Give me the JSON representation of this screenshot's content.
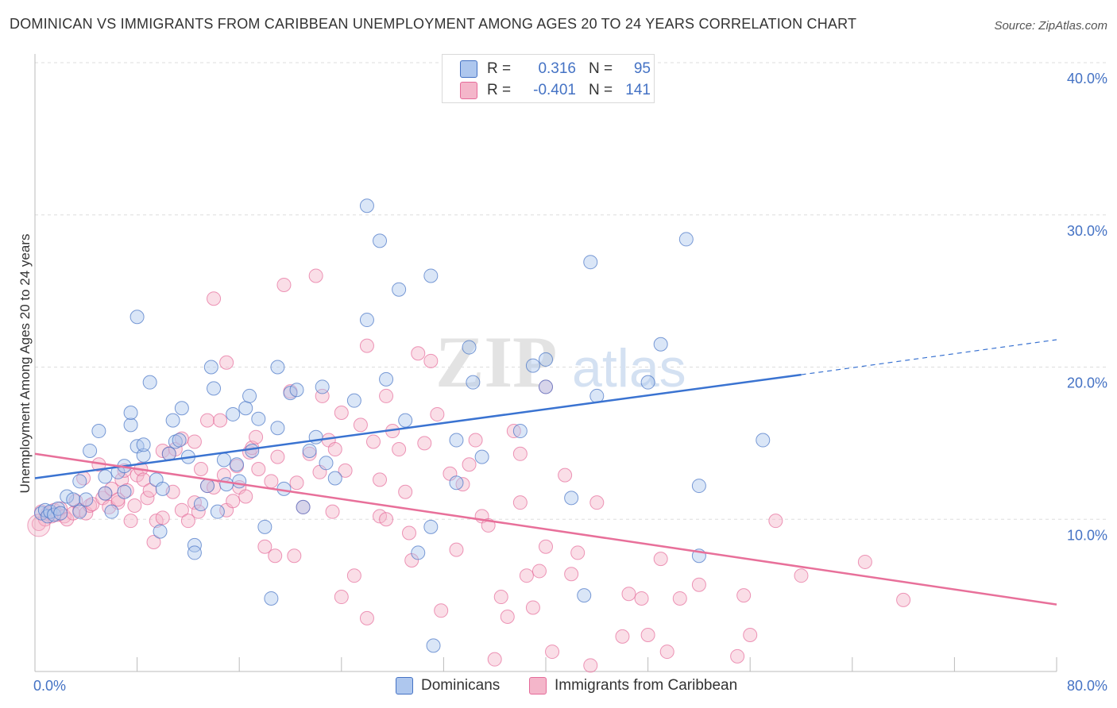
{
  "title": "DOMINICAN VS IMMIGRANTS FROM CARIBBEAN UNEMPLOYMENT AMONG AGES 20 TO 24 YEARS CORRELATION CHART",
  "source": "Source: ZipAtlas.com",
  "watermark": {
    "zip": "ZIP",
    "atlas": "atlas"
  },
  "colors": {
    "blue": "#4472c4",
    "blue_fill": "#aec7ee",
    "blue_line": "#3a73d1",
    "pink": "#e56b9a",
    "pink_fill": "#f4b6ca",
    "pink_line": "#e8709a",
    "grid": "#dddddd",
    "axis": "#bbbbbb"
  },
  "stats_legend": [
    {
      "r_label": "R =",
      "r_value": "0.316",
      "n_label": "N =",
      "n_value": "95",
      "color": "#aec7ee"
    },
    {
      "r_label": "R =",
      "r_value": "-0.401",
      "n_label": "N =",
      "n_value": "141",
      "color": "#f4b6ca"
    }
  ],
  "series_legend": [
    {
      "name": "Dominicans",
      "color": "#aec7ee"
    },
    {
      "name": "Immigrants from Caribbean",
      "color": "#f4b6ca"
    }
  ],
  "chart_data": {
    "type": "scatter",
    "title": "DOMINICAN VS IMMIGRANTS FROM CARIBBEAN UNEMPLOYMENT AMONG AGES 20 TO 24 YEARS CORRELATION CHART",
    "xlabel": "",
    "ylabel": "Unemployment Among Ages 20 to 24 years",
    "xlim": [
      0,
      80
    ],
    "ylim": [
      0,
      40
    ],
    "x_ticks": [
      0,
      80
    ],
    "x_tick_labels": [
      "0.0%",
      "80.0%"
    ],
    "y_ticks": [
      10,
      20,
      30,
      40
    ],
    "y_tick_labels": [
      "10.0%",
      "20.0%",
      "30.0%",
      "40.0%"
    ],
    "grid": true,
    "legend_position": "top-center",
    "series": [
      {
        "name": "Dominicans",
        "r": 0.316,
        "n": 95,
        "trend": {
          "x0": 0,
          "y0": 12.7,
          "x1": 60,
          "y1": 19.5,
          "dashed_to_x": 80,
          "dashed_to_y": 21.8
        },
        "points": [
          [
            0.5,
            10.4
          ],
          [
            0.8,
            10.6
          ],
          [
            1.0,
            10.2
          ],
          [
            1.2,
            10.5
          ],
          [
            1.5,
            10.3
          ],
          [
            1.8,
            10.7
          ],
          [
            2.0,
            10.4
          ],
          [
            2.5,
            11.5
          ],
          [
            3.0,
            11.3
          ],
          [
            3.5,
            10.5
          ],
          [
            3.5,
            12.5
          ],
          [
            4.0,
            11.3
          ],
          [
            4.3,
            14.5
          ],
          [
            5.0,
            15.8
          ],
          [
            5.5,
            12.8
          ],
          [
            5.5,
            11.7
          ],
          [
            6.0,
            10.5
          ],
          [
            6.5,
            13.1
          ],
          [
            7.0,
            11.8
          ],
          [
            7.0,
            13.5
          ],
          [
            7.5,
            16.2
          ],
          [
            7.5,
            17.0
          ],
          [
            8.0,
            14.8
          ],
          [
            8.0,
            23.3
          ],
          [
            8.5,
            14.2
          ],
          [
            8.5,
            14.9
          ],
          [
            9.0,
            19.0
          ],
          [
            9.5,
            12.6
          ],
          [
            9.8,
            9.2
          ],
          [
            10.0,
            12.0
          ],
          [
            10.5,
            14.3
          ],
          [
            10.8,
            16.5
          ],
          [
            11.0,
            15.1
          ],
          [
            11.3,
            15.2
          ],
          [
            11.5,
            17.3
          ],
          [
            12.0,
            14.1
          ],
          [
            12.5,
            8.3
          ],
          [
            12.5,
            7.8
          ],
          [
            13.0,
            11.0
          ],
          [
            13.5,
            12.2
          ],
          [
            13.8,
            20.0
          ],
          [
            14.0,
            18.6
          ],
          [
            14.3,
            10.5
          ],
          [
            14.8,
            13.9
          ],
          [
            15.0,
            12.3
          ],
          [
            15.5,
            16.9
          ],
          [
            15.8,
            13.6
          ],
          [
            16.0,
            12.5
          ],
          [
            16.5,
            17.3
          ],
          [
            16.8,
            18.1
          ],
          [
            17.0,
            14.5
          ],
          [
            17.5,
            16.6
          ],
          [
            18.0,
            9.5
          ],
          [
            18.5,
            4.8
          ],
          [
            19.0,
            16.0
          ],
          [
            19.0,
            20.0
          ],
          [
            19.5,
            12.0
          ],
          [
            20.0,
            18.3
          ],
          [
            20.5,
            18.5
          ],
          [
            21.0,
            10.8
          ],
          [
            21.5,
            14.5
          ],
          [
            22.0,
            15.4
          ],
          [
            22.5,
            18.7
          ],
          [
            22.8,
            13.7
          ],
          [
            23.5,
            12.7
          ],
          [
            25.0,
            17.8
          ],
          [
            26.0,
            30.6
          ],
          [
            26.0,
            23.1
          ],
          [
            27.0,
            28.3
          ],
          [
            27.5,
            19.2
          ],
          [
            28.5,
            25.1
          ],
          [
            29.0,
            16.5
          ],
          [
            30.0,
            7.8
          ],
          [
            31.0,
            26.0
          ],
          [
            31.0,
            9.5
          ],
          [
            31.2,
            1.7
          ],
          [
            33.0,
            15.2
          ],
          [
            33.0,
            12.4
          ],
          [
            34.0,
            21.3
          ],
          [
            34.3,
            19.0
          ],
          [
            35.0,
            14.1
          ],
          [
            38.0,
            15.8
          ],
          [
            39.0,
            20.1
          ],
          [
            40.0,
            18.7
          ],
          [
            40.0,
            20.5
          ],
          [
            42.0,
            11.4
          ],
          [
            43.0,
            5.0
          ],
          [
            43.5,
            26.9
          ],
          [
            44.0,
            18.1
          ],
          [
            48.0,
            19.0
          ],
          [
            49.0,
            21.5
          ],
          [
            51.0,
            28.4
          ],
          [
            52.0,
            7.6
          ],
          [
            52.0,
            12.2
          ],
          [
            57.0,
            15.2
          ]
        ]
      },
      {
        "name": "Immigrants from Caribbean",
        "r": -0.401,
        "n": 141,
        "trend": {
          "x0": 0,
          "y0": 14.3,
          "x1": 80,
          "y1": 4.4
        },
        "points": [
          [
            0.3,
            9.7
          ],
          [
            0.5,
            10.5
          ],
          [
            0.8,
            10.0
          ],
          [
            1.0,
            10.4
          ],
          [
            1.3,
            10.2
          ],
          [
            1.5,
            10.6
          ],
          [
            1.8,
            10.3
          ],
          [
            2.0,
            10.7
          ],
          [
            2.3,
            10.2
          ],
          [
            2.5,
            10.0
          ],
          [
            3.0,
            10.4
          ],
          [
            3.2,
            11.2
          ],
          [
            3.5,
            10.6
          ],
          [
            3.8,
            12.7
          ],
          [
            4.0,
            10.4
          ],
          [
            4.3,
            10.9
          ],
          [
            4.5,
            11.0
          ],
          [
            5.0,
            13.6
          ],
          [
            5.3,
            11.4
          ],
          [
            5.5,
            11.7
          ],
          [
            5.8,
            10.8
          ],
          [
            6.0,
            12.0
          ],
          [
            6.5,
            11.1
          ],
          [
            6.5,
            11.3
          ],
          [
            6.8,
            12.6
          ],
          [
            7.0,
            13.2
          ],
          [
            7.2,
            11.9
          ],
          [
            7.5,
            9.9
          ],
          [
            7.8,
            10.9
          ],
          [
            8.0,
            12.9
          ],
          [
            8.3,
            13.3
          ],
          [
            8.5,
            12.6
          ],
          [
            8.8,
            11.4
          ],
          [
            9.0,
            11.9
          ],
          [
            9.3,
            8.5
          ],
          [
            9.5,
            9.9
          ],
          [
            10.0,
            10.1
          ],
          [
            10.0,
            14.5
          ],
          [
            10.5,
            14.3
          ],
          [
            10.8,
            11.8
          ],
          [
            11.0,
            14.6
          ],
          [
            11.5,
            15.3
          ],
          [
            11.5,
            10.6
          ],
          [
            12.0,
            9.9
          ],
          [
            12.5,
            15.1
          ],
          [
            12.5,
            11.1
          ],
          [
            12.8,
            10.5
          ],
          [
            13.0,
            13.3
          ],
          [
            13.5,
            16.5
          ],
          [
            13.5,
            12.2
          ],
          [
            14.0,
            12.1
          ],
          [
            14.0,
            24.5
          ],
          [
            14.5,
            16.5
          ],
          [
            14.8,
            12.9
          ],
          [
            15.0,
            20.3
          ],
          [
            15.0,
            10.6
          ],
          [
            15.5,
            11.2
          ],
          [
            15.8,
            13.5
          ],
          [
            16.0,
            12.1
          ],
          [
            16.5,
            11.5
          ],
          [
            16.8,
            14.4
          ],
          [
            17.0,
            14.7
          ],
          [
            17.3,
            15.4
          ],
          [
            17.5,
            13.3
          ],
          [
            18.0,
            8.2
          ],
          [
            18.5,
            12.5
          ],
          [
            18.8,
            7.6
          ],
          [
            19.0,
            14.1
          ],
          [
            19.5,
            25.4
          ],
          [
            20.0,
            18.4
          ],
          [
            20.3,
            7.6
          ],
          [
            20.5,
            12.4
          ],
          [
            21.0,
            10.8
          ],
          [
            21.5,
            14.3
          ],
          [
            22.0,
            26.0
          ],
          [
            22.3,
            13.1
          ],
          [
            22.5,
            18.1
          ],
          [
            23.0,
            15.2
          ],
          [
            23.3,
            10.5
          ],
          [
            23.5,
            14.6
          ],
          [
            24.0,
            17.0
          ],
          [
            24.0,
            4.9
          ],
          [
            24.3,
            13.2
          ],
          [
            25.0,
            6.3
          ],
          [
            25.5,
            16.2
          ],
          [
            26.0,
            21.4
          ],
          [
            26.0,
            3.5
          ],
          [
            26.5,
            15.1
          ],
          [
            27.0,
            10.2
          ],
          [
            27.0,
            12.6
          ],
          [
            27.5,
            18.1
          ],
          [
            27.5,
            10.0
          ],
          [
            28.0,
            15.8
          ],
          [
            28.5,
            14.6
          ],
          [
            29.0,
            11.8
          ],
          [
            29.3,
            9.1
          ],
          [
            29.5,
            7.3
          ],
          [
            30.0,
            20.9
          ],
          [
            30.5,
            15.0
          ],
          [
            31.0,
            20.4
          ],
          [
            31.5,
            16.9
          ],
          [
            31.8,
            4.0
          ],
          [
            32.5,
            13.0
          ],
          [
            33.0,
            8.0
          ],
          [
            33.5,
            12.3
          ],
          [
            34.0,
            13.6
          ],
          [
            34.5,
            15.2
          ],
          [
            35.0,
            10.2
          ],
          [
            35.5,
            9.6
          ],
          [
            36.0,
            0.8
          ],
          [
            36.5,
            4.9
          ],
          [
            37.0,
            3.6
          ],
          [
            37.5,
            15.8
          ],
          [
            38.0,
            11.1
          ],
          [
            38.0,
            14.3
          ],
          [
            38.5,
            6.3
          ],
          [
            39.0,
            4.2
          ],
          [
            39.5,
            6.6
          ],
          [
            40.0,
            18.7
          ],
          [
            40.0,
            8.2
          ],
          [
            40.5,
            1.3
          ],
          [
            41.5,
            12.9
          ],
          [
            42.0,
            6.4
          ],
          [
            42.5,
            7.8
          ],
          [
            43.5,
            0.4
          ],
          [
            44.0,
            11.1
          ],
          [
            46.0,
            2.3
          ],
          [
            46.5,
            5.1
          ],
          [
            47.5,
            4.8
          ],
          [
            48.0,
            2.4
          ],
          [
            49.0,
            7.4
          ],
          [
            49.5,
            1.3
          ],
          [
            50.5,
            4.8
          ],
          [
            52.0,
            5.7
          ],
          [
            55.0,
            1.0
          ],
          [
            55.5,
            5.0
          ],
          [
            56.0,
            2.4
          ],
          [
            58.0,
            9.9
          ],
          [
            60.0,
            6.3
          ],
          [
            65.0,
            7.2
          ],
          [
            68.0,
            4.7
          ]
        ]
      }
    ]
  }
}
